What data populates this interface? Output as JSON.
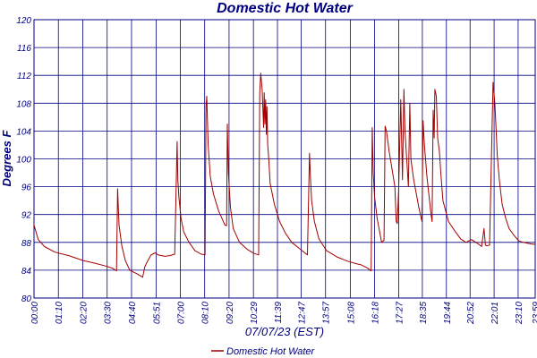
{
  "chart_data": {
    "type": "line",
    "title": "Domestic Hot Water",
    "xlabel": "07/07/23 (EST)",
    "ylabel": "Degrees F",
    "ylim": [
      80,
      120
    ],
    "yticks": [
      "80",
      "84",
      "88",
      "92",
      "96",
      "100",
      "104",
      "108",
      "112",
      "116",
      "120"
    ],
    "xlim": [
      0,
      1439
    ],
    "xticks": [
      {
        "minute": 0,
        "label": "00:00"
      },
      {
        "minute": 70,
        "label": "01:10"
      },
      {
        "minute": 140,
        "label": "02:20"
      },
      {
        "minute": 210,
        "label": "03:30"
      },
      {
        "minute": 280,
        "label": "04:40"
      },
      {
        "minute": 351,
        "label": "05:51"
      },
      {
        "minute": 420,
        "label": "07:00"
      },
      {
        "minute": 490,
        "label": "08:10"
      },
      {
        "minute": 560,
        "label": "09:20"
      },
      {
        "minute": 630,
        "label": "10:29"
      },
      {
        "minute": 699,
        "label": "11:39"
      },
      {
        "minute": 767,
        "label": "12:47"
      },
      {
        "minute": 837,
        "label": "13:57"
      },
      {
        "minute": 908,
        "label": "15:08"
      },
      {
        "minute": 978,
        "label": "16:18"
      },
      {
        "minute": 1047,
        "label": "17:27"
      },
      {
        "minute": 1115,
        "label": "18:35"
      },
      {
        "minute": 1184,
        "label": "19:44"
      },
      {
        "minute": 1252,
        "label": "20:52"
      },
      {
        "minute": 1321,
        "label": "22:01"
      },
      {
        "minute": 1390,
        "label": "23:10"
      },
      {
        "minute": 1439,
        "label": "23:59"
      }
    ],
    "grid": true,
    "legend": "bottom",
    "colors": {
      "line": "#a00000",
      "grid": "#000080",
      "text": "#000080"
    },
    "series": [
      {
        "name": "Domestic Hot Water",
        "x": [
          0,
          12,
          30,
          60,
          100,
          140,
          175,
          205,
          225,
          237,
          240,
          244,
          252,
          262,
          275,
          295,
          312,
          318,
          326,
          336,
          348,
          356,
          376,
          390,
          404,
          411,
          413,
          416,
          422,
          430,
          445,
          462,
          480,
          491,
          494,
          496,
          500,
          506,
          515,
          530,
          548,
          553,
          555,
          558,
          564,
          572,
          590,
          612,
          632,
          645,
          648,
          651,
          655,
          659,
          661,
          663,
          665,
          667,
          669,
          671,
          674,
          678,
          690,
          705,
          722,
          740,
          765,
          785,
          791,
          794,
          797,
          805,
          818,
          840,
          870,
          900,
          928,
          938,
          958,
          968,
          971,
          974,
          978,
          985,
          998,
          1005,
          1008,
          1012,
          1020,
          1036,
          1040,
          1043,
          1047,
          1053,
          1058,
          1062,
          1065,
          1070,
          1075,
          1079,
          1082,
          1090,
          1105,
          1114,
          1117,
          1121,
          1128,
          1140,
          1143,
          1146,
          1149,
          1151,
          1155,
          1159,
          1164,
          1168,
          1174,
          1190,
          1210,
          1225,
          1240,
          1256,
          1275,
          1285,
          1292,
          1296,
          1300,
          1308,
          1318,
          1323,
          1327,
          1330,
          1336,
          1344,
          1354,
          1364,
          1378,
          1392,
          1405,
          1415,
          1425,
          1439
        ],
        "values": [
          90.5,
          88.4,
          87.4,
          86.6,
          86.1,
          85.4,
          85.0,
          84.6,
          84.3,
          83.9,
          95.7,
          90.5,
          87.5,
          85.4,
          84.0,
          83.5,
          83.0,
          84.5,
          85.3,
          86.2,
          86.5,
          86.2,
          86.0,
          86.1,
          86.3,
          102.5,
          97.0,
          94.5,
          91.5,
          89.5,
          88.0,
          86.8,
          86.3,
          86.2,
          107.5,
          109.0,
          102.0,
          97.5,
          95.0,
          92.5,
          90.5,
          90.4,
          105.0,
          98.0,
          93.0,
          90.0,
          88.0,
          87.0,
          86.4,
          86.2,
          109.5,
          112.3,
          110.0,
          104.5,
          109.5,
          105.0,
          108.5,
          103.5,
          107.5,
          102.0,
          100.0,
          96.5,
          93.5,
          91.0,
          89.3,
          88.0,
          87.0,
          86.2,
          100.8,
          97.0,
          94.0,
          91.0,
          88.5,
          86.8,
          85.9,
          85.3,
          84.9,
          84.8,
          84.3,
          83.9,
          104.5,
          98.0,
          94.5,
          91.5,
          88.0,
          88.3,
          104.7,
          104.0,
          101.0,
          96.0,
          91.0,
          90.7,
          95.5,
          108.5,
          97.0,
          110.0,
          104.0,
          100.0,
          96.0,
          108.0,
          100.0,
          97.0,
          93.0,
          91.0,
          105.5,
          102.0,
          97.5,
          92.0,
          91.0,
          107.0,
          103.0,
          110.0,
          109.0,
          103.0,
          101.0,
          98.0,
          94.0,
          91.0,
          89.5,
          88.5,
          88.0,
          88.4,
          87.8,
          87.4,
          90.0,
          87.6,
          87.5,
          87.6,
          111.0,
          108.0,
          104.0,
          100.5,
          97.0,
          93.5,
          91.5,
          90.0,
          89.0,
          88.2,
          88.0,
          87.9,
          87.8,
          87.7
        ]
      }
    ]
  }
}
